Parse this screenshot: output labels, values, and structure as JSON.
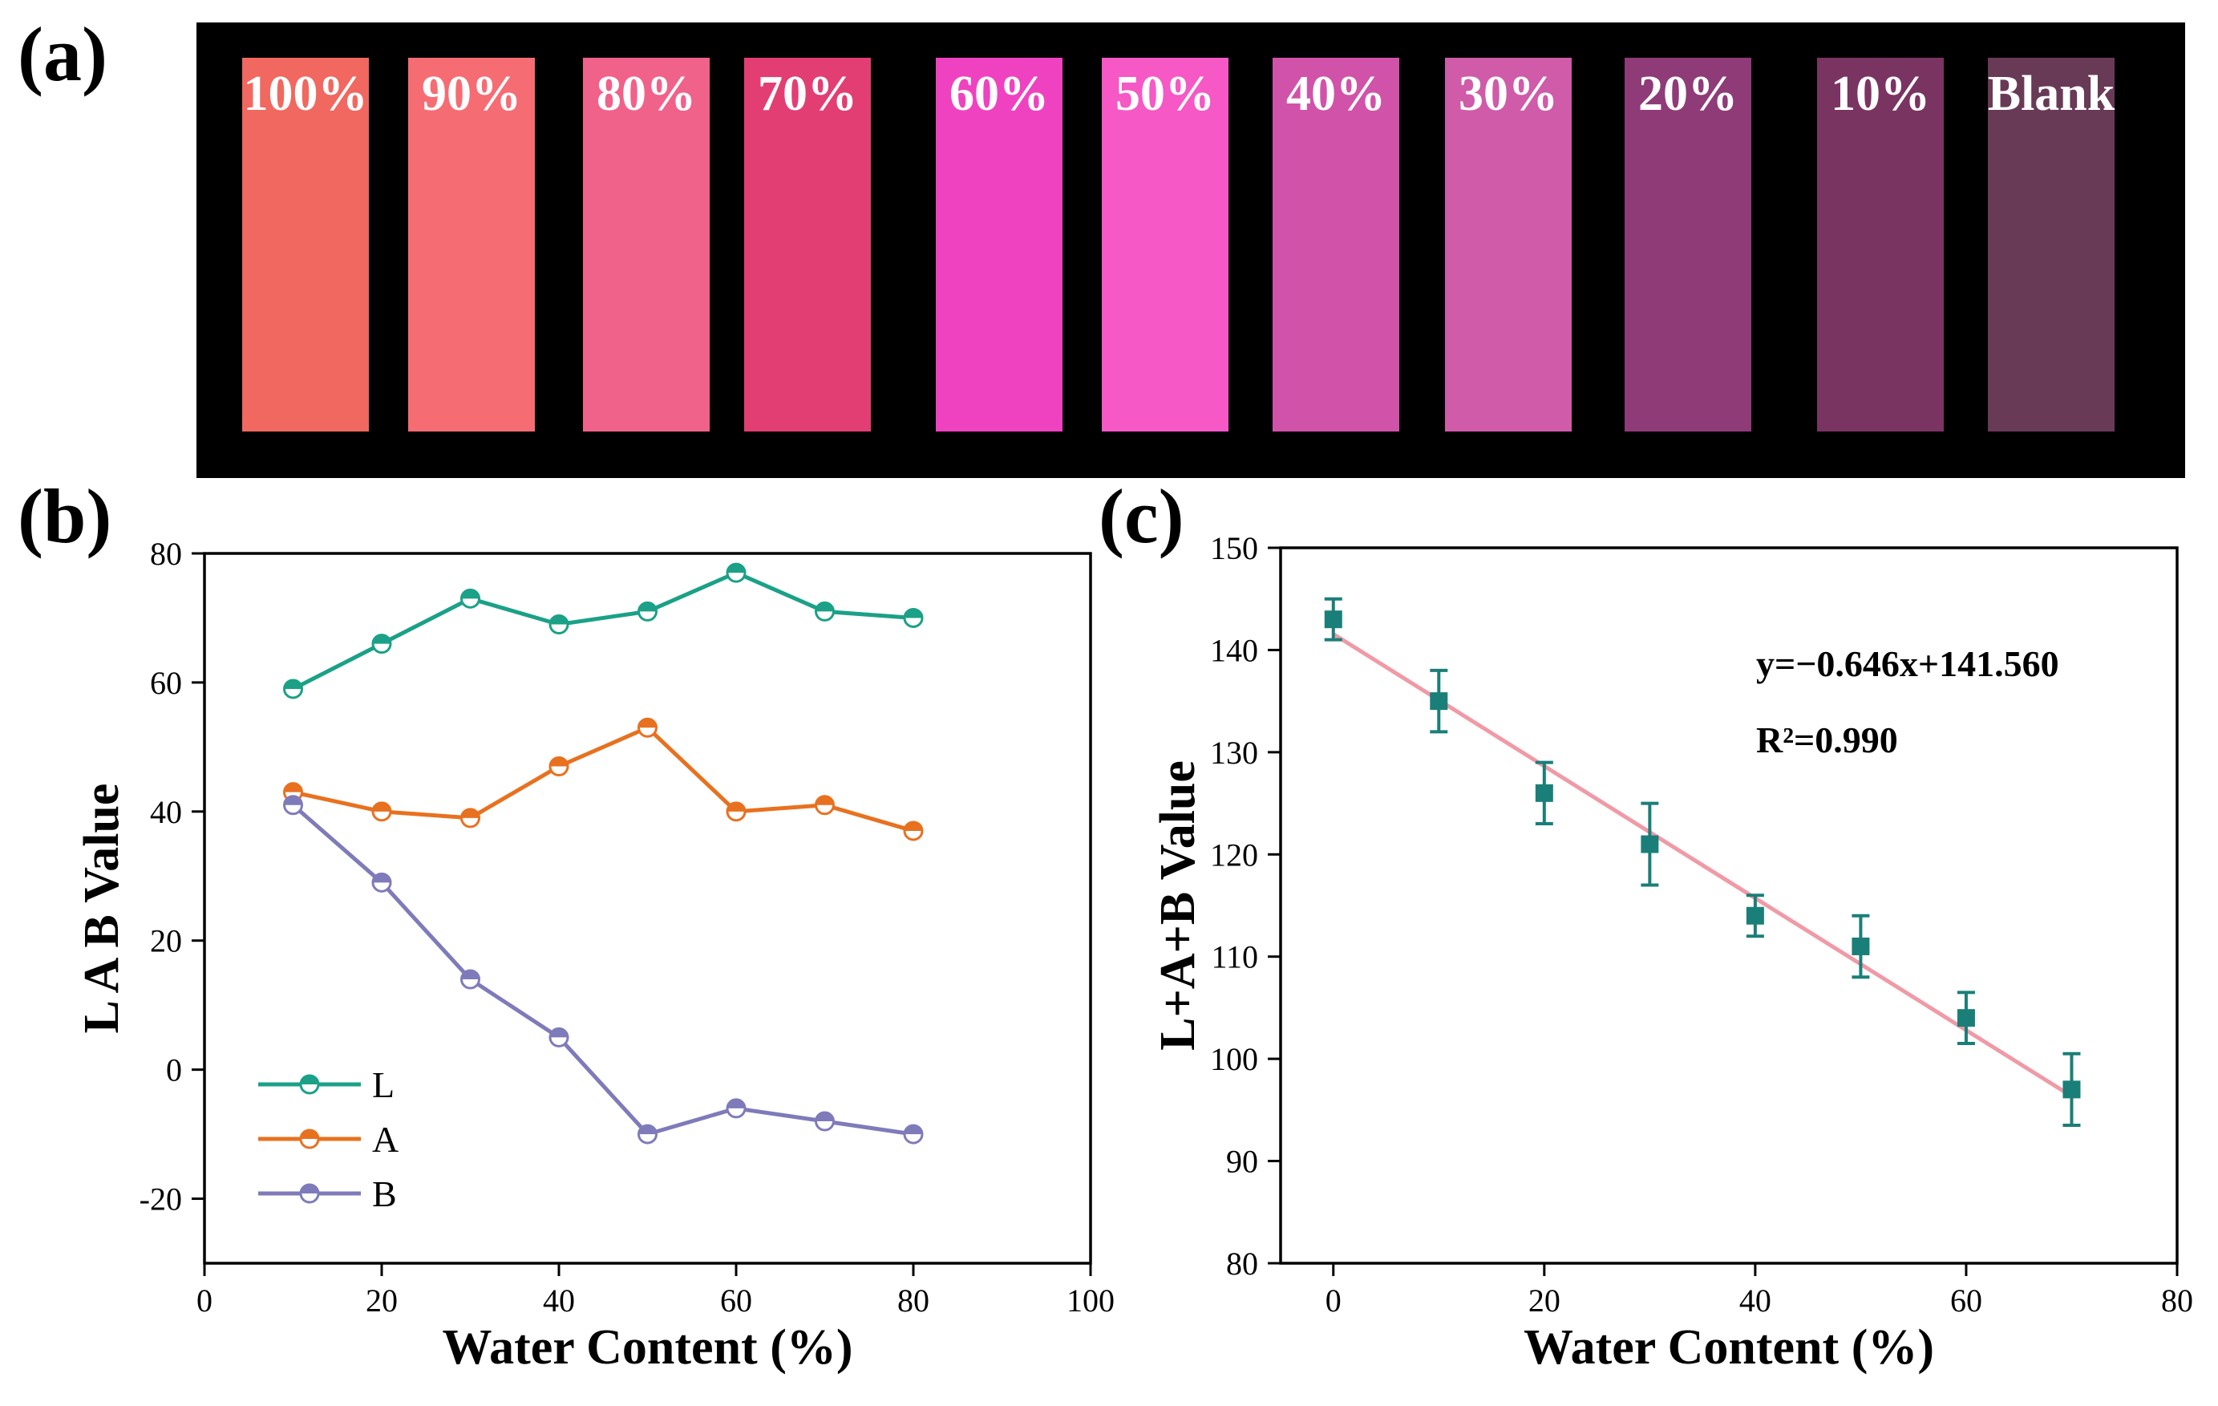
{
  "figure": {
    "panel_labels": {
      "a": "(a)",
      "b": "(b)",
      "c": "(c)"
    }
  },
  "strips": [
    {
      "label": "100%",
      "color": "#f0685f"
    },
    {
      "label": "90%",
      "color": "#f66c73"
    },
    {
      "label": "80%",
      "color": "#f0628a"
    },
    {
      "label": "70%",
      "color": "#e23e73"
    },
    {
      "label": "60%",
      "color": "#ef42c0"
    },
    {
      "label": "50%",
      "color": "#f658c6"
    },
    {
      "label": "40%",
      "color": "#d053a9"
    },
    {
      "label": "30%",
      "color": "#cf5ba9"
    },
    {
      "label": "20%",
      "color": "#8e3b78"
    },
    {
      "label": "10%",
      "color": "#7a3462"
    },
    {
      "label": "Blank",
      "color": "#683a56"
    }
  ],
  "chart_data": [
    {
      "id": "b",
      "type": "line",
      "title": "",
      "xlabel": "Water Content (%)",
      "ylabel": "L A B Value",
      "xlim": [
        0,
        100
      ],
      "ylim": [
        -30,
        80
      ],
      "xticks": [
        0,
        20,
        40,
        60,
        80,
        100
      ],
      "yticks": [
        -20,
        0,
        20,
        40,
        60,
        80
      ],
      "x": [
        10,
        20,
        30,
        40,
        50,
        60,
        70,
        80
      ],
      "legend_position": "bottom-left",
      "series": [
        {
          "name": "L",
          "color": "#1aa187",
          "values": [
            59,
            66,
            73,
            69,
            71,
            77,
            71,
            70
          ]
        },
        {
          "name": "A",
          "color": "#e8711f",
          "values": [
            43,
            40,
            39,
            47,
            53,
            40,
            41,
            37
          ]
        },
        {
          "name": "B",
          "color": "#7f7bba",
          "values": [
            41,
            29,
            14,
            5,
            -10,
            -6,
            -8,
            -10
          ]
        }
      ]
    },
    {
      "id": "c",
      "type": "scatter",
      "title": "",
      "xlabel": "Water Content (%)",
      "ylabel": "L+A+B Value",
      "xlim": [
        -5,
        80
      ],
      "ylim": [
        80,
        150
      ],
      "xticks": [
        0,
        20,
        40,
        60,
        80
      ],
      "yticks": [
        80,
        90,
        100,
        110,
        120,
        130,
        140,
        150
      ],
      "marker_color": "#1a7f78",
      "series": [
        {
          "name": "L+A+B",
          "x": [
            0,
            10,
            20,
            30,
            40,
            50,
            60,
            70
          ],
          "y": [
            143,
            135,
            126,
            121,
            114,
            111,
            104,
            97
          ],
          "err_low": [
            2,
            3,
            3,
            4,
            2,
            3,
            2.5,
            3.5
          ],
          "err_high": [
            2,
            3,
            3,
            4,
            2,
            3,
            2.5,
            3.5
          ]
        }
      ],
      "fit": {
        "slope": -0.646,
        "intercept": 141.56,
        "x_range": [
          0,
          70
        ],
        "color": "#f09aa6"
      },
      "annotations": {
        "equation": "y=−0.646x+141.560",
        "r2": "R²=0.990"
      }
    }
  ]
}
